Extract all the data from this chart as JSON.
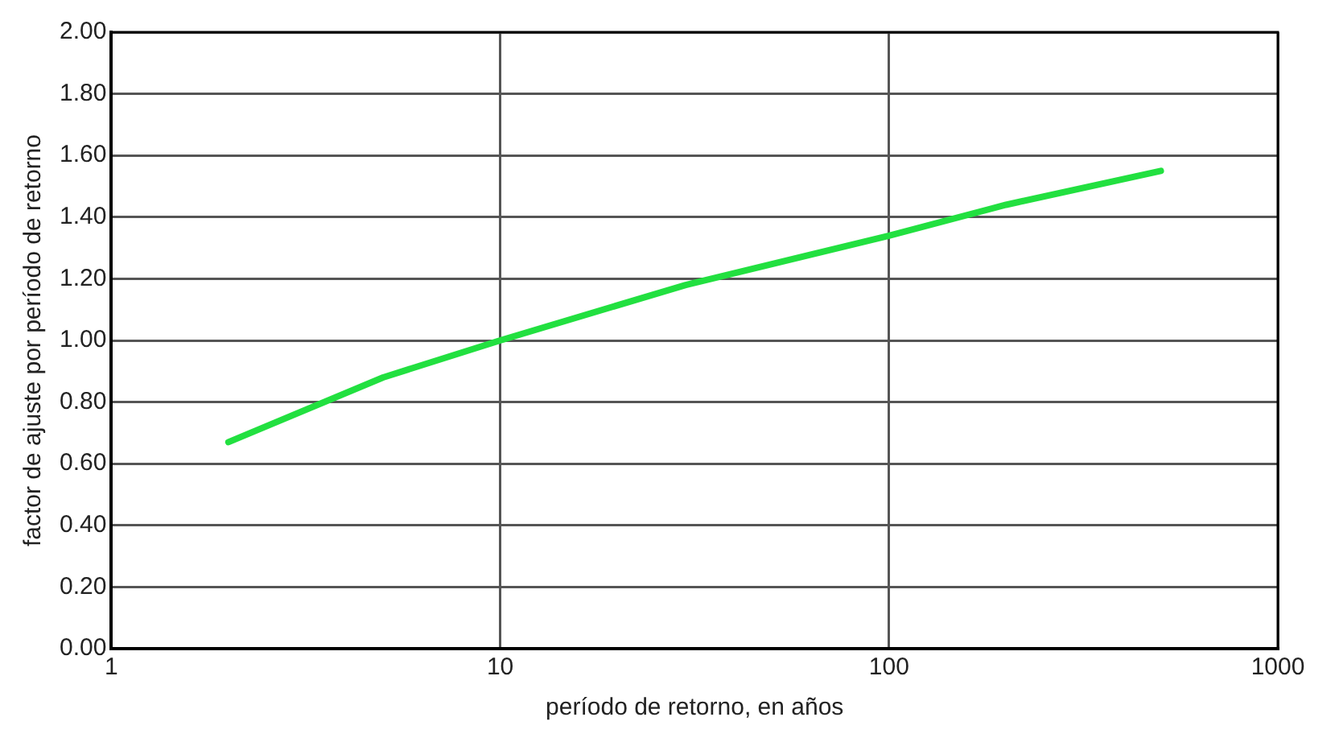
{
  "chart_data": {
    "type": "line",
    "xlabel": "período de retorno, en años",
    "ylabel": "factor de ajuste por período de retorno",
    "x": [
      2,
      5,
      10,
      30,
      100,
      200,
      500
    ],
    "series": [
      {
        "color": "#22e040",
        "values": [
          0.67,
          0.88,
          1.0,
          1.18,
          1.34,
          1.44,
          1.55
        ]
      }
    ],
    "log": "x",
    "xlim": [
      1,
      1000
    ],
    "xticks": [
      1,
      10,
      100,
      1000
    ],
    "ylim": [
      0,
      2
    ],
    "yticks": [
      {
        "value": 0,
        "label": "0.00"
      },
      {
        "value": 0.2,
        "label": "0.20"
      },
      {
        "value": 0.4,
        "label": "0.40"
      },
      {
        "value": 0.6,
        "label": "0.60"
      },
      {
        "value": 0.8,
        "label": "0.80"
      },
      {
        "value": 1,
        "label": "1.00"
      },
      {
        "value": 1.2,
        "label": "1.20"
      },
      {
        "value": 1.4,
        "label": "1.40"
      },
      {
        "value": 1.6,
        "label": "1.60"
      },
      {
        "value": 1.8,
        "label": "1.80"
      },
      {
        "value": 2,
        "label": "2.00"
      }
    ],
    "grid": true,
    "legend": false,
    "marker": "none",
    "line_style": "solid"
  }
}
